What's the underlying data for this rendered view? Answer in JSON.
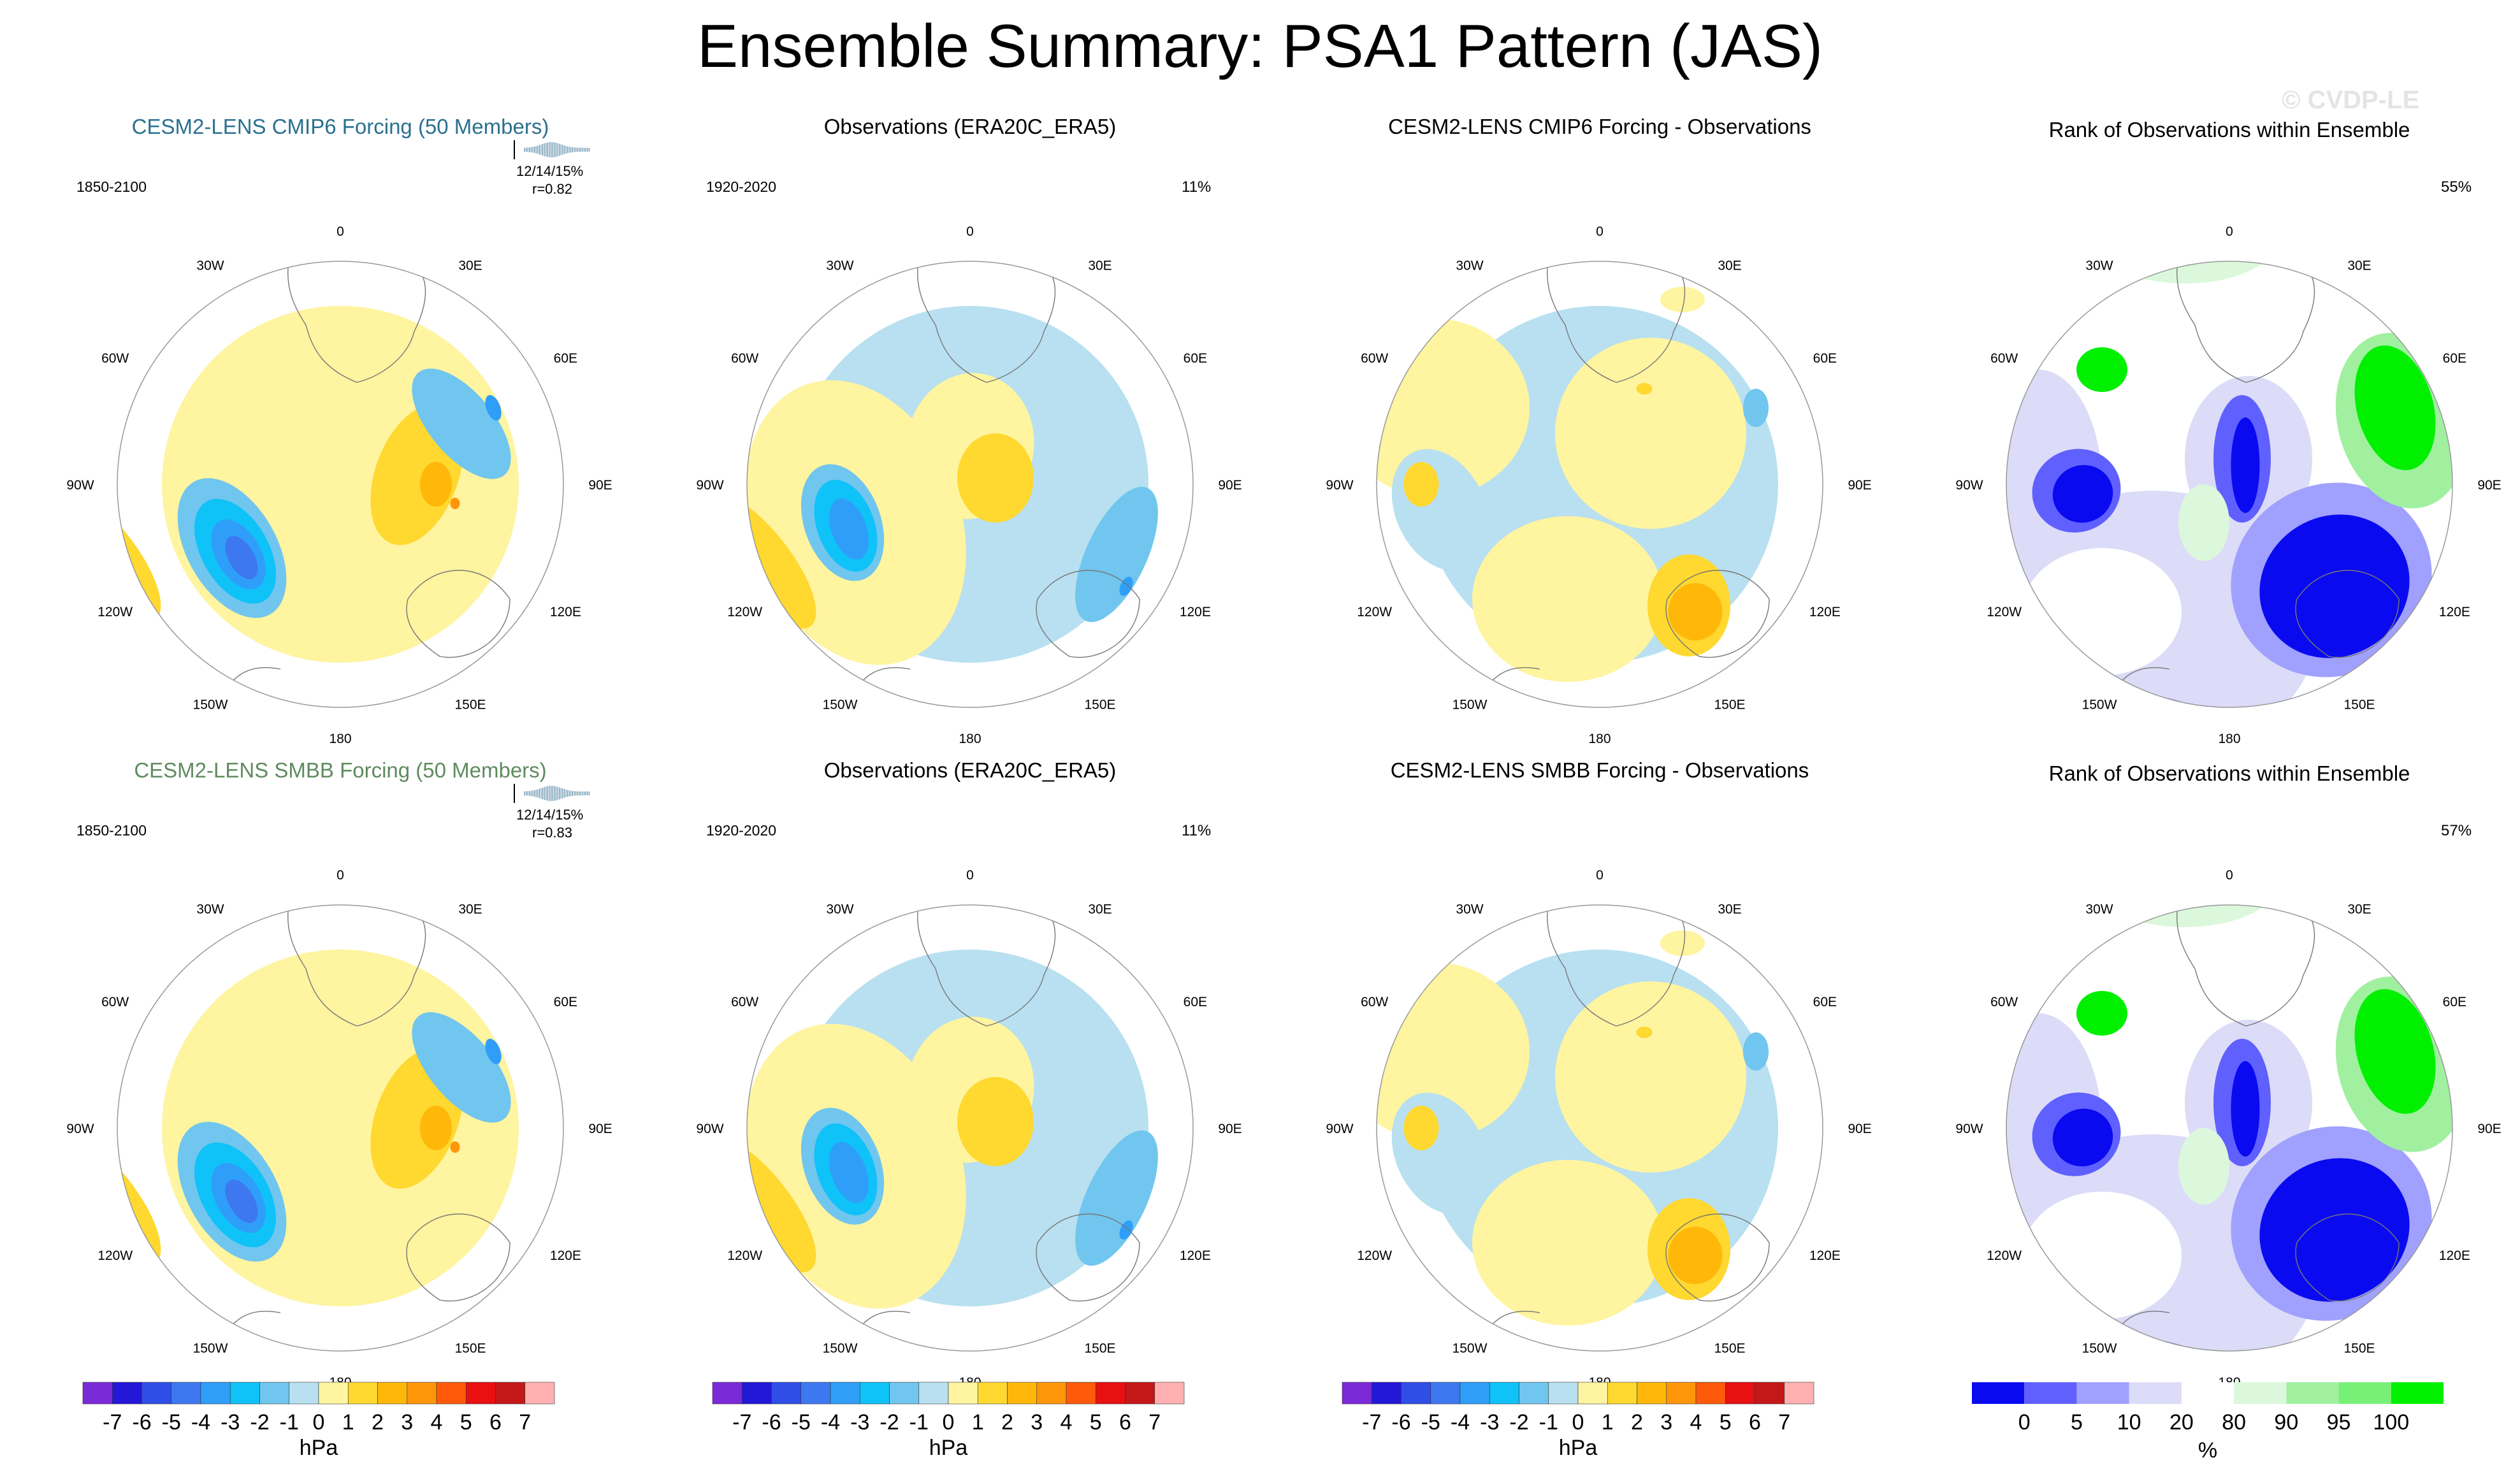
{
  "title": "Ensemble Summary: PSA1 Pattern (JAS)",
  "watermark": "© CVDP-LE",
  "longitude_labels": [
    "0",
    "30E",
    "60E",
    "90E",
    "120E",
    "150E",
    "180",
    "150W",
    "120W",
    "90W",
    "60W",
    "30W"
  ],
  "rows": [
    {
      "model_title": "CESM2-LENS CMIP6 Forcing (50 Members)",
      "model_period": "1850-2100",
      "model_stats": "12/14/15%",
      "model_r": "r=0.82",
      "obs_title": "Observations (ERA20C_ERA5)",
      "obs_period": "1920-2020",
      "obs_pct": "11%",
      "diff_title": "CESM2-LENS CMIP6 Forcing - Observations",
      "rank_title": "Rank of Observations within Ensemble",
      "rank_pct": "55%"
    },
    {
      "model_title": "CESM2-LENS SMBB Forcing (50 Members)",
      "model_period": "1850-2100",
      "model_stats": "12/14/15%",
      "model_r": "r=0.83",
      "obs_title": "Observations (ERA20C_ERA5)",
      "obs_period": "1920-2020",
      "obs_pct": "11%",
      "diff_title": "CESM2-LENS SMBB Forcing - Observations",
      "rank_title": "Rank of Observations within Ensemble",
      "rank_pct": "57%"
    }
  ],
  "chart_data": {
    "type": "heatmap",
    "projection": "south polar stereographic",
    "units": "hPa",
    "contour_levels": [
      -7,
      -6,
      -5,
      -4,
      -3,
      -2,
      -1,
      0,
      1,
      2,
      3,
      4,
      5,
      6,
      7
    ],
    "level_colors": [
      "#7b2ad8",
      "#2418d8",
      "#2f4ee8",
      "#3d78f0",
      "#2f9ef8",
      "#0fc2f8",
      "#70c6ee",
      "#b8e0f0",
      "#fff4a0",
      "#ffd830",
      "#ffb80a",
      "#ff960a",
      "#ff5a0a",
      "#e81010",
      "#c41818",
      "#ffb0b0"
    ],
    "colorbar_unit_label": "hPa",
    "rank_colorbar": {
      "tick_labels": [
        "0",
        "5",
        "10",
        "20",
        "80",
        "90",
        "95",
        "100"
      ],
      "colors": [
        "#0a0af0",
        "#6060ff",
        "#a0a0ff",
        "#dcdcf8",
        "#ffffff",
        "#dcf8dc",
        "#a0f0a0",
        "#78f078",
        "#00f000"
      ],
      "unit_label": "%"
    }
  }
}
